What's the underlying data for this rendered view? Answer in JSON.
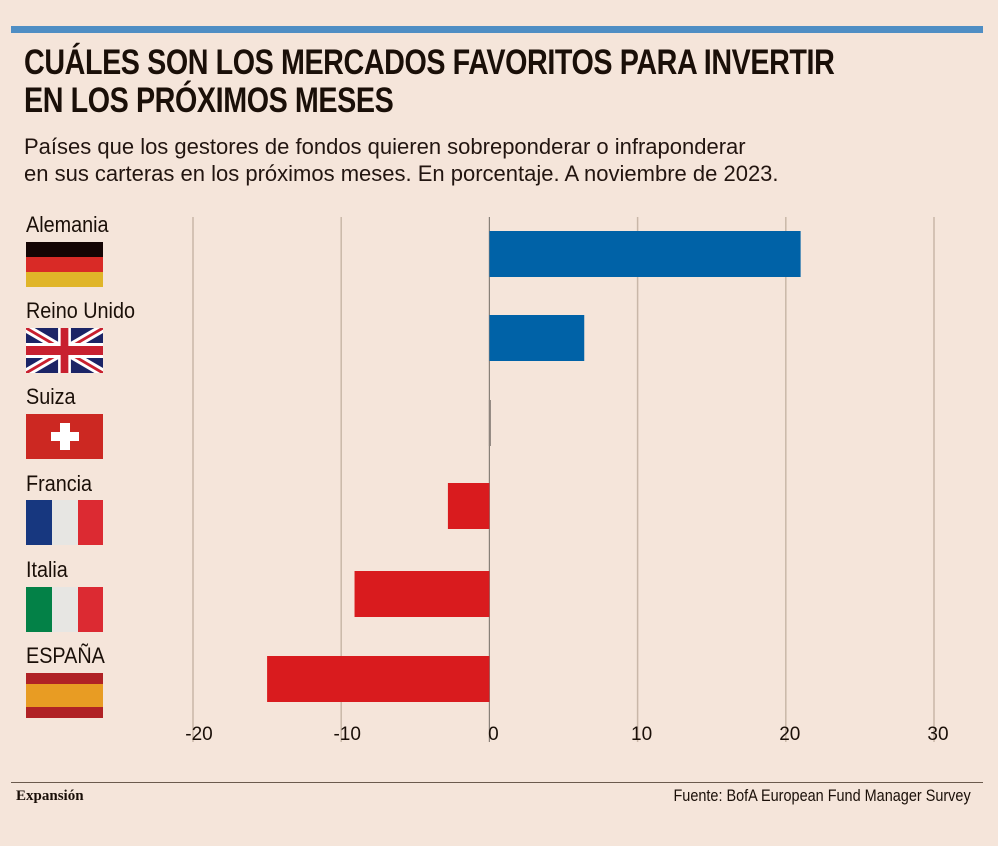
{
  "header": {
    "title_line1": "CUÁLES SON LOS MERCADOS FAVORITOS PARA INVERTIR",
    "title_line2": "EN LOS PRÓXIMOS MESES",
    "subtitle_line1": "Países que los gestores de fondos quieren sobreponderar o infraponderar",
    "subtitle_line2": "en sus carteras en los próximos meses.  En porcentaje. A noviembre de 2023."
  },
  "colors": {
    "background": "#f5e5da",
    "topbar": "#4f8ec4",
    "positive": "#0062a7",
    "negative": "#d91b1e",
    "gridline": "#c9b7a8",
    "zeroline": "#888078"
  },
  "countries": [
    {
      "name": "Alemania",
      "flag": "germany-flag"
    },
    {
      "name": "Reino Unido",
      "flag": "uk-flag"
    },
    {
      "name": "Suiza",
      "flag": "switzerland-flag"
    },
    {
      "name": "Francia",
      "flag": "france-flag"
    },
    {
      "name": "Italia",
      "flag": "italy-flag"
    },
    {
      "name": "ESPAÑA",
      "flag": "spain-flag"
    }
  ],
  "chart_data": {
    "type": "bar",
    "orientation": "horizontal",
    "title": "CUÁLES SON LOS MERCADOS FAVORITOS PARA INVERTIR EN LOS PRÓXIMOS MESES",
    "subtitle": "Países que los gestores de fondos quieren sobreponderar o infraponderar en sus carteras en los próximos meses. En porcentaje. A noviembre de 2023.",
    "categories": [
      "Alemania",
      "Reino Unido",
      "Suiza",
      "Francia",
      "Italia",
      "ESPAÑA"
    ],
    "values": [
      21,
      6.4,
      0,
      -2.8,
      -9.1,
      -15
    ],
    "xlabel": "",
    "ylabel": "",
    "xlim": [
      -20,
      30
    ],
    "xticks": [
      -20,
      -10,
      0,
      10,
      20,
      30
    ],
    "xtick_labels": [
      "-20",
      "-10",
      "0",
      "10",
      "20",
      "30"
    ],
    "grid": true,
    "legend": "none"
  },
  "footer": {
    "brand": "Expansión",
    "source": "Fuente: BofA European Fund Manager Survey"
  }
}
